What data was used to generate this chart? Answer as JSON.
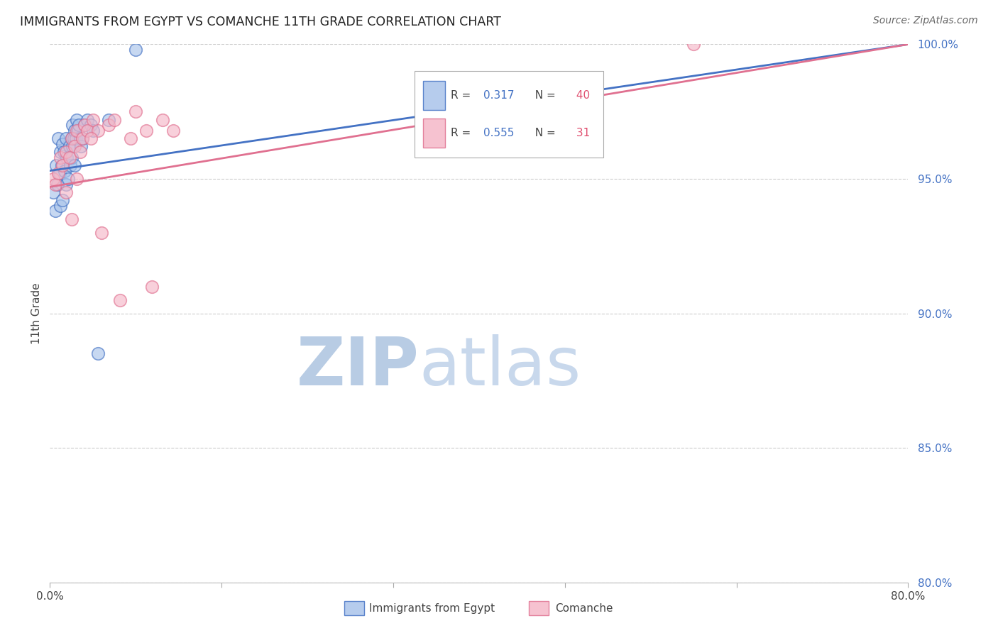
{
  "title": "IMMIGRANTS FROM EGYPT VS COMANCHE 11TH GRADE CORRELATION CHART",
  "source": "Source: ZipAtlas.com",
  "ylabel": "11th Grade",
  "xlim": [
    0.0,
    80.0
  ],
  "ylim": [
    80.0,
    100.0
  ],
  "blue_R": 0.317,
  "blue_N": 40,
  "pink_R": 0.555,
  "pink_N": 31,
  "blue_color": "#aac4ea",
  "pink_color": "#f5b8c8",
  "blue_line_color": "#4472c4",
  "pink_line_color": "#e07090",
  "ytick_color": "#4472c4",
  "watermark_zip_color": "#c5d5ea",
  "watermark_atlas_color": "#c5d5ea",
  "blue_line_y0": 95.3,
  "blue_line_y1": 100.0,
  "pink_line_y0": 94.7,
  "pink_line_y1": 100.0,
  "blue_scatter_x": [
    0.3,
    0.5,
    0.6,
    0.7,
    0.8,
    0.9,
    1.0,
    1.0,
    1.1,
    1.2,
    1.2,
    1.3,
    1.4,
    1.5,
    1.5,
    1.6,
    1.7,
    1.8,
    1.9,
    2.0,
    2.0,
    2.1,
    2.1,
    2.2,
    2.3,
    2.3,
    2.4,
    2.5,
    2.6,
    2.7,
    2.8,
    2.9,
    3.0,
    3.2,
    3.5,
    3.8,
    4.0,
    4.5,
    5.5,
    8.0
  ],
  "blue_scatter_y": [
    94.5,
    93.8,
    95.5,
    94.8,
    96.5,
    95.2,
    96.0,
    94.0,
    95.5,
    96.3,
    94.2,
    96.0,
    95.3,
    96.5,
    94.8,
    95.8,
    95.0,
    96.2,
    95.5,
    96.5,
    95.8,
    97.0,
    96.2,
    96.5,
    96.8,
    95.5,
    96.5,
    97.2,
    96.8,
    97.0,
    96.5,
    96.2,
    96.5,
    97.0,
    97.2,
    97.0,
    96.8,
    88.5,
    97.2,
    99.8
  ],
  "pink_scatter_x": [
    0.3,
    0.5,
    0.8,
    1.0,
    1.2,
    1.5,
    1.8,
    2.0,
    2.3,
    2.5,
    2.8,
    3.0,
    3.2,
    3.5,
    4.0,
    4.5,
    5.5,
    6.0,
    7.5,
    8.0,
    9.0,
    10.5,
    11.5,
    2.0,
    2.5,
    1.5,
    3.8,
    4.8,
    6.5,
    9.5,
    60.0
  ],
  "pink_scatter_y": [
    95.0,
    94.8,
    95.2,
    95.8,
    95.5,
    96.0,
    95.8,
    96.5,
    96.2,
    96.8,
    96.0,
    96.5,
    97.0,
    96.8,
    97.2,
    96.8,
    97.0,
    97.2,
    96.5,
    97.5,
    96.8,
    97.2,
    96.8,
    93.5,
    95.0,
    94.5,
    96.5,
    93.0,
    90.5,
    91.0,
    100.0
  ]
}
